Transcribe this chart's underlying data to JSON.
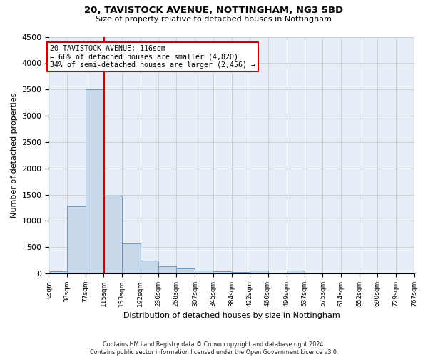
{
  "title_line1": "20, TAVISTOCK AVENUE, NOTTINGHAM, NG3 5BD",
  "title_line2": "Size of property relative to detached houses in Nottingham",
  "xlabel": "Distribution of detached houses by size in Nottingham",
  "ylabel": "Number of detached properties",
  "footnote": "Contains HM Land Registry data © Crown copyright and database right 2024.\nContains public sector information licensed under the Open Government Licence v3.0.",
  "bin_edges": [
    0,
    38,
    77,
    115,
    153,
    192,
    230,
    268,
    307,
    345,
    384,
    422,
    460,
    499,
    537,
    575,
    614,
    652,
    690,
    729,
    767
  ],
  "bin_labels": [
    "0sqm",
    "38sqm",
    "77sqm",
    "115sqm",
    "153sqm",
    "192sqm",
    "230sqm",
    "268sqm",
    "307sqm",
    "345sqm",
    "384sqm",
    "422sqm",
    "460sqm",
    "499sqm",
    "537sqm",
    "575sqm",
    "614sqm",
    "652sqm",
    "690sqm",
    "729sqm",
    "767sqm"
  ],
  "bar_heights": [
    40,
    1270,
    3500,
    1480,
    575,
    245,
    130,
    90,
    55,
    40,
    30,
    50,
    0,
    50,
    0,
    0,
    0,
    0,
    0,
    0
  ],
  "bar_color": "#c8d8ea",
  "bar_edge_color": "#6090b8",
  "grid_color": "#cccccc",
  "background_color": "#e8eef8",
  "property_size": 116,
  "property_line_color": "#cc0000",
  "annotation_text": "20 TAVISTOCK AVENUE: 116sqm\n← 66% of detached houses are smaller (4,820)\n34% of semi-detached houses are larger (2,456) →",
  "annotation_box_color": "#ffffff",
  "annotation_box_edge_color": "#cc0000",
  "ylim": [
    0,
    4500
  ],
  "yticks": [
    0,
    500,
    1000,
    1500,
    2000,
    2500,
    3000,
    3500,
    4000,
    4500
  ]
}
